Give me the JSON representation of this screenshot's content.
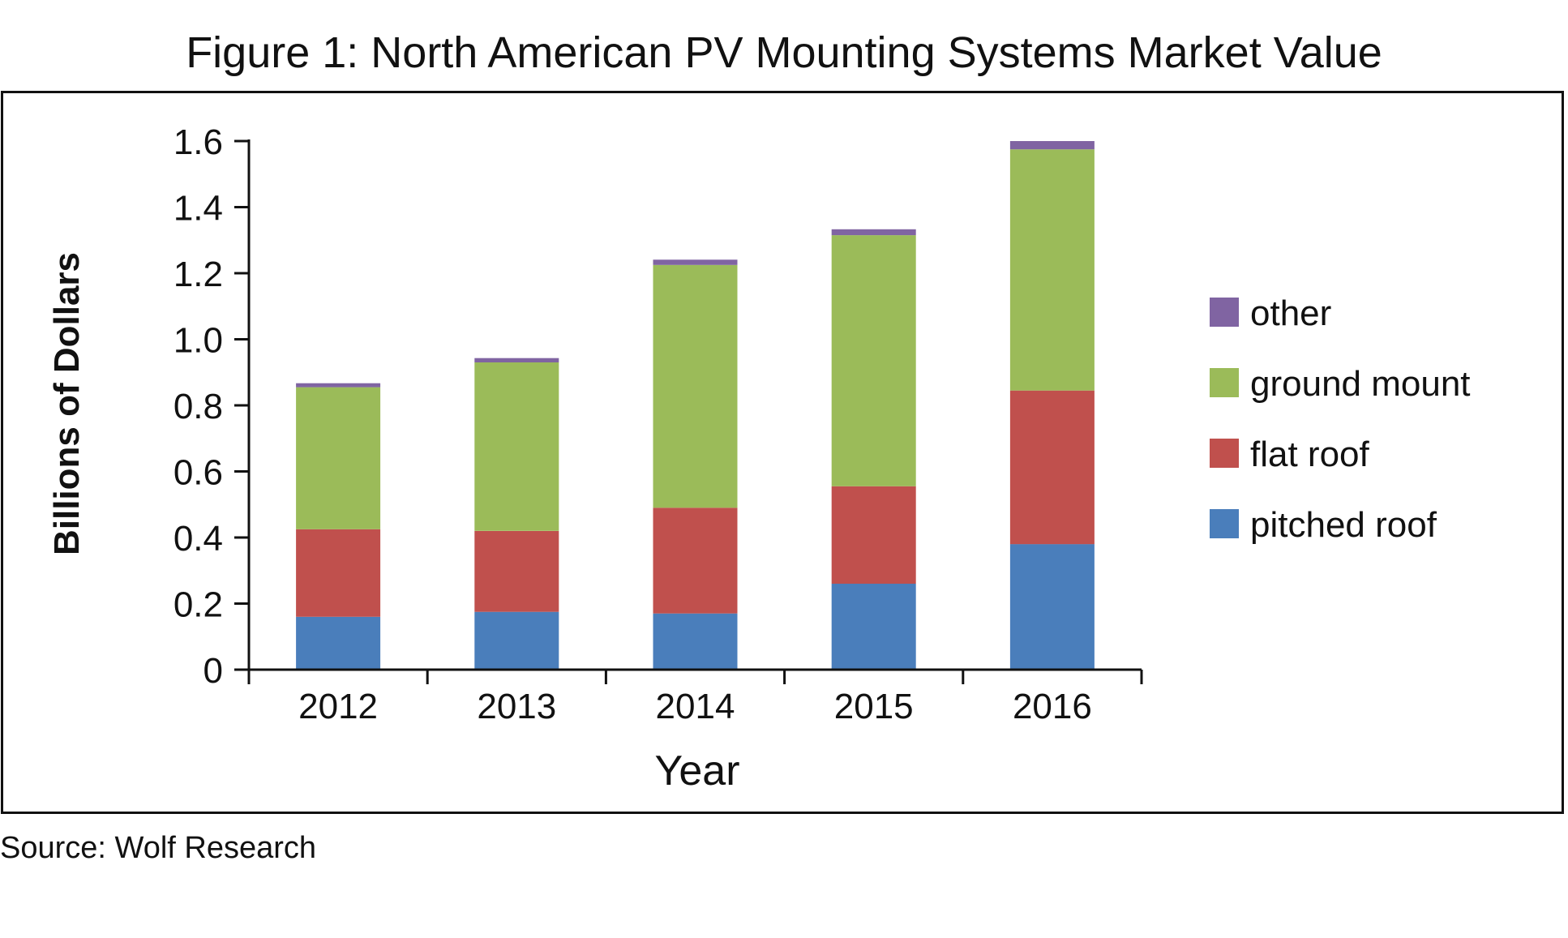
{
  "title": "Figure 1: North American PV Mounting Systems Market Value",
  "source": "Source: Wolf Research",
  "chart_data": {
    "type": "bar",
    "stacked": true,
    "title": "Figure 1: North American PV Mounting Systems Market Value",
    "xlabel": "Year",
    "ylabel": "Billions of Dollars",
    "categories": [
      "2012",
      "2013",
      "2014",
      "2015",
      "2016"
    ],
    "ylim": [
      0,
      1.6
    ],
    "yticks": [
      "0",
      "0.2",
      "0.4",
      "0.6",
      "0.8",
      "1.0",
      "1.2",
      "1.4",
      "1.6"
    ],
    "ytick_values": [
      0,
      0.2,
      0.4,
      0.6,
      0.8,
      1.0,
      1.2,
      1.4,
      1.6
    ],
    "grid": false,
    "legend_position": "right",
    "series": [
      {
        "name": "pitched roof",
        "color": "#4A7EBB",
        "values": [
          0.16,
          0.175,
          0.17,
          0.26,
          0.38
        ]
      },
      {
        "name": "flat roof",
        "color": "#C0504D",
        "values": [
          0.265,
          0.245,
          0.32,
          0.295,
          0.465
        ]
      },
      {
        "name": "ground mount",
        "color": "#9BBB59",
        "values": [
          0.43,
          0.51,
          0.735,
          0.76,
          0.73
        ]
      },
      {
        "name": "other",
        "color": "#8064A2",
        "values": [
          0.012,
          0.013,
          0.016,
          0.018,
          0.025
        ]
      }
    ]
  }
}
